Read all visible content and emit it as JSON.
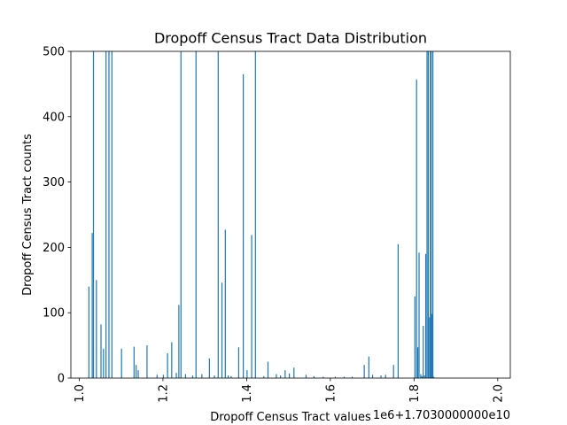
{
  "chart_data": {
    "type": "bar",
    "title": "Dropoff Census Tract Data Distribution",
    "xlabel": "Dropoff Census Tract values",
    "ylabel": "Dropoff Census Tract counts",
    "offset_text": "1e6+1.7030000000e10",
    "xlim": [
      0.98,
      2.03
    ],
    "ylim": [
      0,
      500
    ],
    "x_ticks": [
      1.0,
      1.2,
      1.4,
      1.6,
      1.8,
      2.0
    ],
    "x_tick_labels": [
      "1.0",
      "1.2",
      "1.4",
      "1.6",
      "1.8",
      "2.0"
    ],
    "y_ticks": [
      0,
      100,
      200,
      300,
      400,
      500
    ],
    "y_tick_labels": [
      "0",
      "100",
      "200",
      "300",
      "400",
      "500"
    ],
    "bar_color": "#1f77b4",
    "series": [
      {
        "x": [
          1.023,
          1.031,
          1.034,
          1.041,
          1.052,
          1.058,
          1.064,
          1.071,
          1.078,
          1.101,
          1.131,
          1.136,
          1.141,
          1.162,
          1.186,
          1.201,
          1.211,
          1.221,
          1.232,
          1.238,
          1.243,
          1.254,
          1.271,
          1.279,
          1.293,
          1.311,
          1.323,
          1.332,
          1.341,
          1.349,
          1.356,
          1.363,
          1.381,
          1.392,
          1.401,
          1.412,
          1.421,
          1.441,
          1.451,
          1.471,
          1.481,
          1.492,
          1.502,
          1.513,
          1.542,
          1.561,
          1.583,
          1.612,
          1.633,
          1.652,
          1.681,
          1.692,
          1.701,
          1.721,
          1.732,
          1.751,
          1.762,
          1.802,
          1.806,
          1.809,
          1.812,
          1.816,
          1.819,
          1.822,
          1.825,
          1.828,
          1.831,
          1.834,
          1.837,
          1.839,
          1.841,
          1.843,
          1.845,
          1.847
        ],
        "values": [
          140,
          222,
          500,
          150,
          82,
          45,
          500,
          500,
          500,
          45,
          48,
          20,
          12,
          50,
          5,
          5,
          38,
          55,
          8,
          112,
          500,
          6,
          4,
          500,
          6,
          30,
          4,
          500,
          146,
          227,
          4,
          3,
          47,
          465,
          12,
          219,
          500,
          3,
          25,
          6,
          4,
          12,
          7,
          16,
          5,
          3,
          2,
          2,
          2,
          2,
          20,
          33,
          5,
          4,
          5,
          20,
          205,
          125,
          457,
          47,
          192,
          6,
          3,
          80,
          4,
          190,
          500,
          500,
          93,
          500,
          500,
          98,
          500,
          2
        ]
      }
    ]
  }
}
